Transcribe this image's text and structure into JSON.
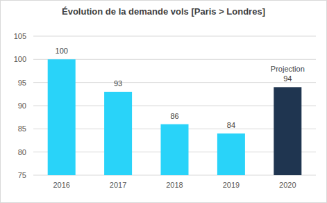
{
  "chart_data": {
    "type": "bar",
    "title": "Évolution de la demande vols [Paris > Londres]",
    "categories": [
      "2016",
      "2017",
      "2018",
      "2019",
      "2020"
    ],
    "values": [
      100,
      93,
      86,
      84,
      94
    ],
    "colors": [
      "#29d3f9",
      "#29d3f9",
      "#29d3f9",
      "#29d3f9",
      "#1f3550"
    ],
    "ylim": [
      75,
      105
    ],
    "yticks": [
      75,
      80,
      85,
      90,
      95,
      100,
      105
    ],
    "grid": true,
    "data_labels": true,
    "annotations": [
      {
        "text": "Projection",
        "category": "2020"
      }
    ]
  }
}
